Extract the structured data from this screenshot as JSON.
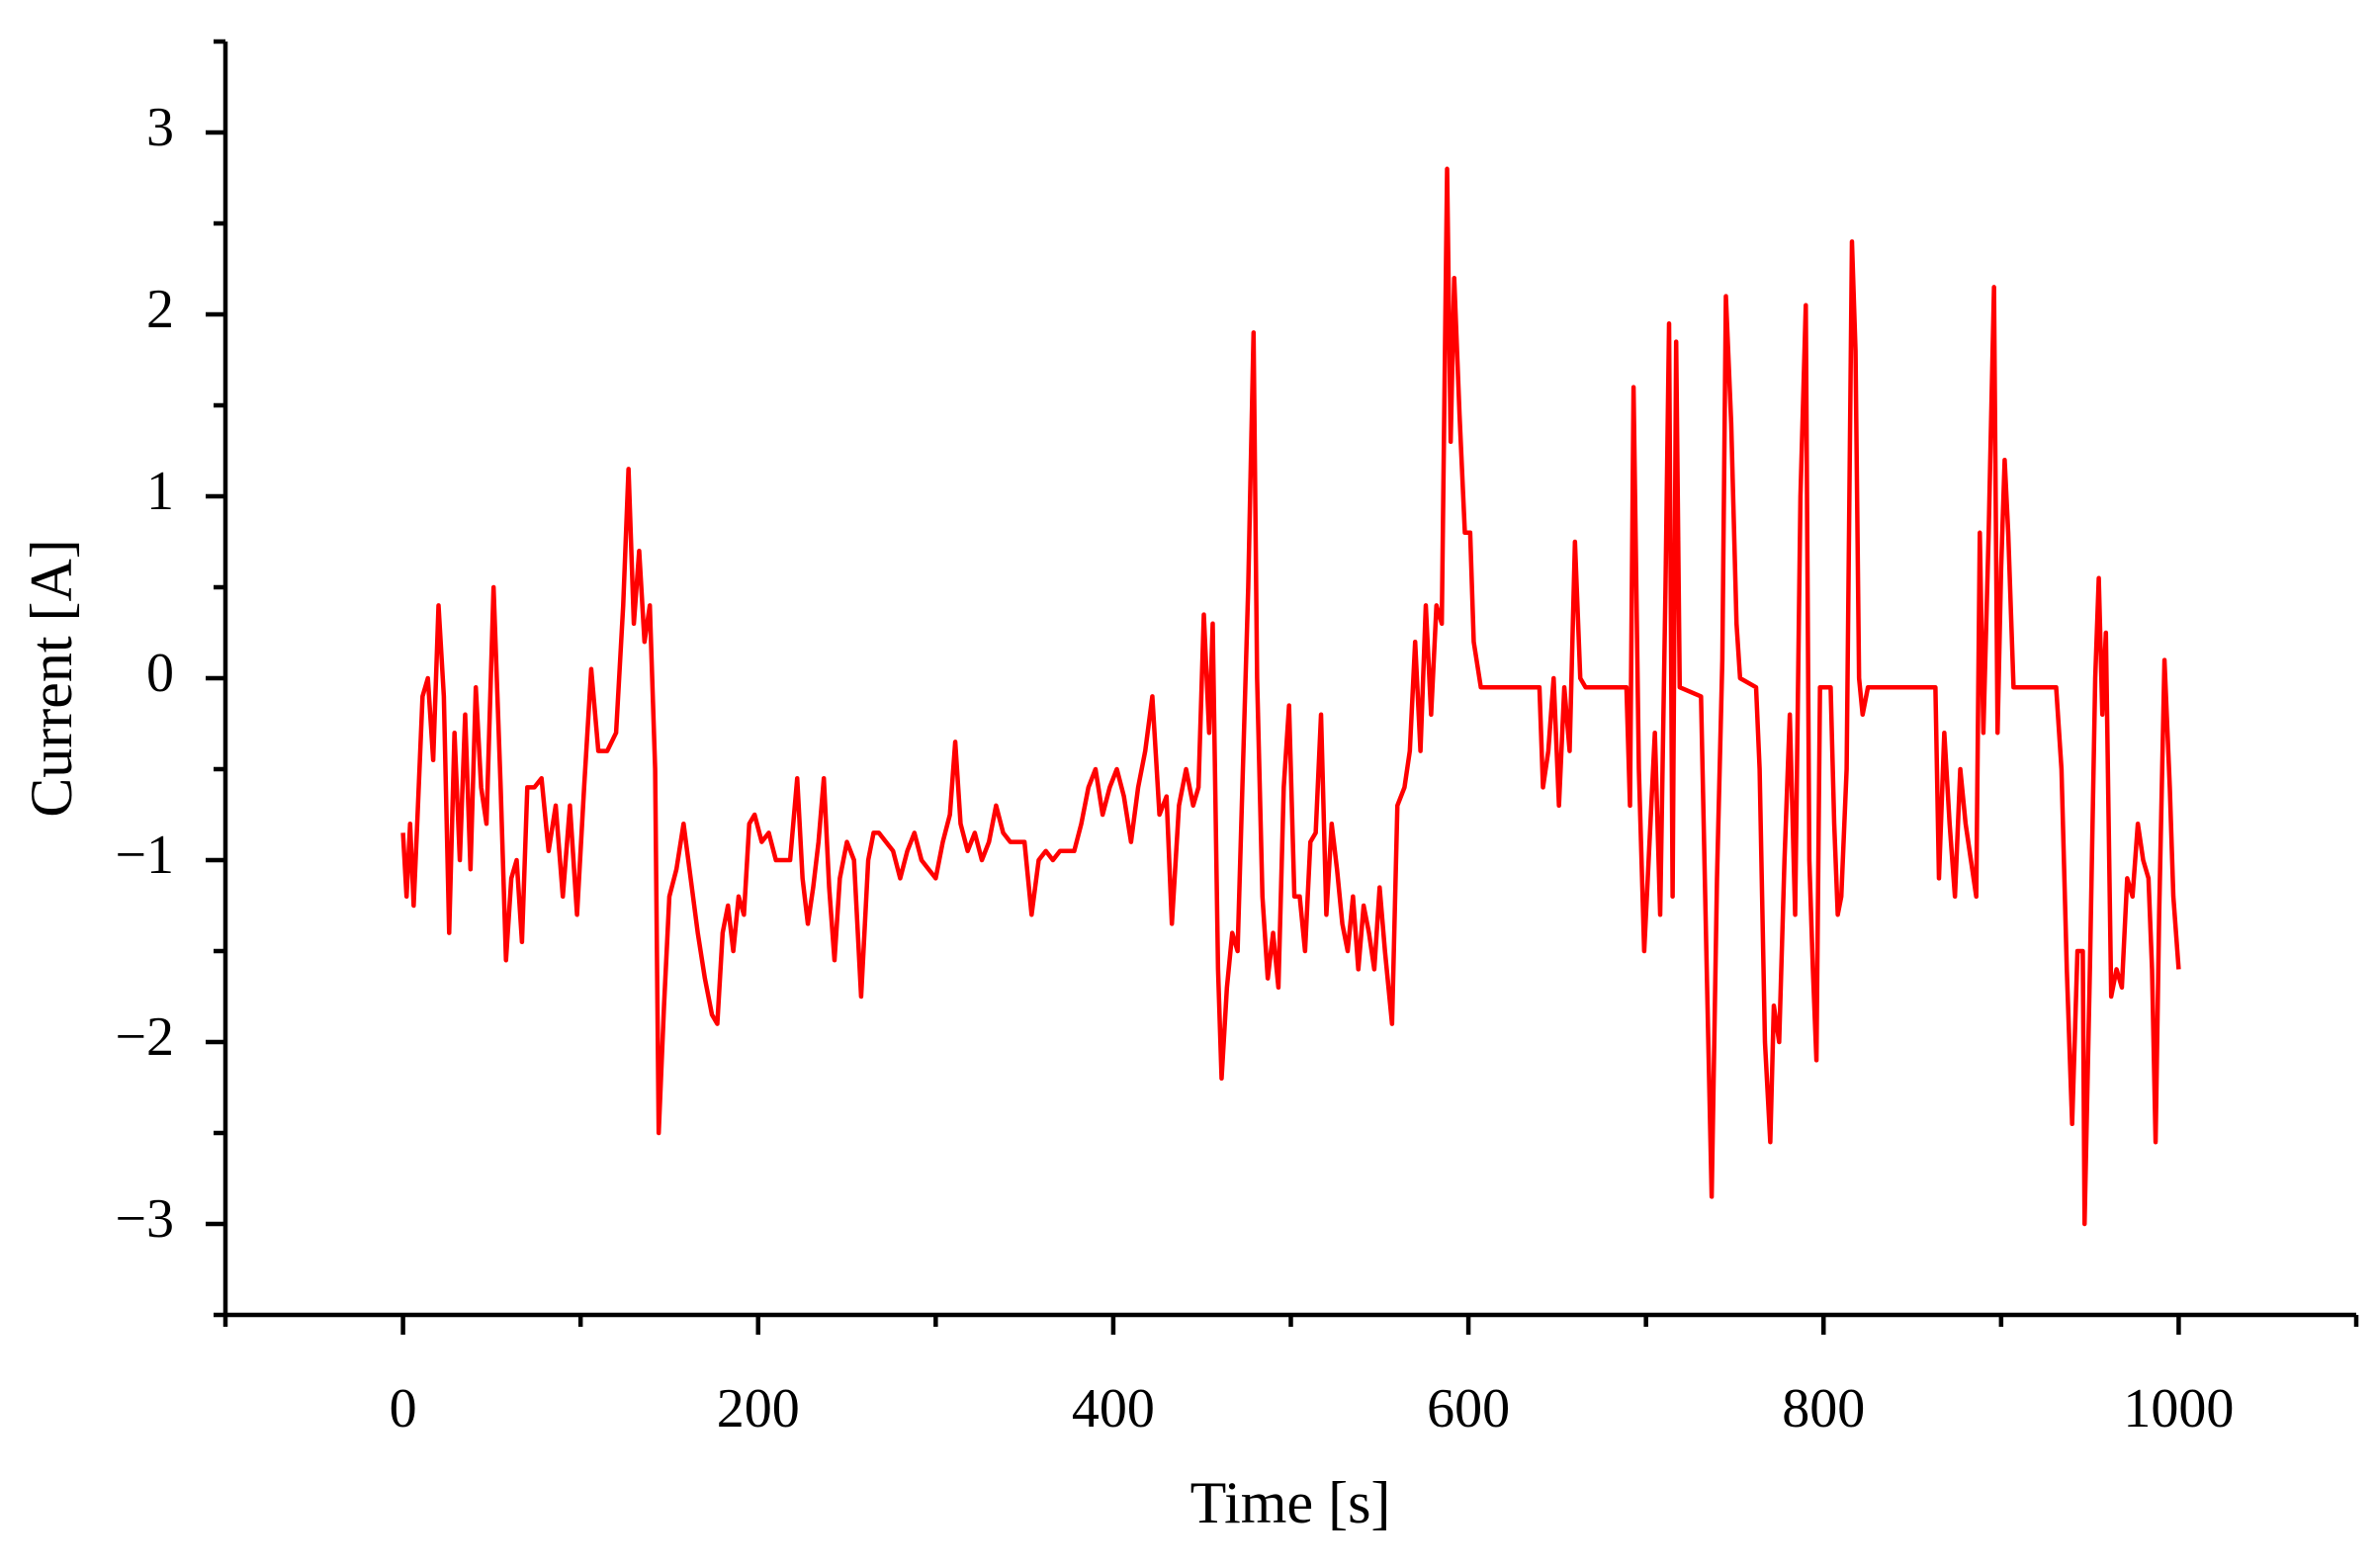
{
  "chart_data": {
    "type": "line",
    "x_label": "Time [s]",
    "y_label": "Current [A]",
    "xlim": [
      -100,
      1100
    ],
    "ylim": [
      -3.5,
      3.5
    ],
    "xticks": [
      0,
      200,
      400,
      600,
      800,
      1000
    ],
    "xminorticks": [
      -100,
      100,
      300,
      500,
      700,
      900,
      1100
    ],
    "yticks": [
      {
        "value": -3,
        "label": "−3"
      },
      {
        "value": -2,
        "label": "−2"
      },
      {
        "value": -1,
        "label": "−1"
      },
      0,
      1,
      2,
      3
    ],
    "yminorticks": [
      -3.5,
      -2.5,
      -1.5,
      -0.5,
      0.5,
      1.5,
      2.5,
      3.5
    ],
    "grid": false,
    "color": "#ff0000",
    "x": [
      0,
      2,
      4,
      6,
      8,
      11,
      14,
      17,
      20,
      23,
      26,
      29,
      32,
      35,
      38,
      41,
      44,
      47,
      51,
      55,
      58,
      61,
      64,
      67,
      70,
      74,
      78,
      82,
      86,
      90,
      94,
      98,
      102,
      106,
      110,
      115,
      120,
      124,
      127,
      130,
      133,
      136,
      139,
      142,
      144,
      147,
      150,
      154,
      158,
      162,
      166,
      170,
      174,
      177,
      180,
      183,
      186,
      189,
      192,
      195,
      198,
      202,
      206,
      210,
      214,
      218,
      222,
      225,
      228,
      231,
      234,
      237,
      240,
      243,
      246,
      250,
      254,
      258,
      262,
      265,
      268,
      272,
      276,
      280,
      284,
      288,
      292,
      296,
      300,
      304,
      308,
      311,
      314,
      318,
      322,
      326,
      330,
      334,
      338,
      342,
      346,
      350,
      354,
      358,
      362,
      366,
      370,
      374,
      378,
      382,
      386,
      390,
      394,
      398,
      402,
      406,
      410,
      414,
      418,
      422,
      426,
      430,
      433,
      437,
      441,
      445,
      448,
      451,
      454,
      456,
      459,
      461,
      464,
      467,
      470,
      473,
      476,
      479,
      481,
      484,
      487,
      490,
      493,
      496,
      499,
      502,
      505,
      508,
      511,
      514,
      517,
      520,
      523,
      526,
      529,
      532,
      535,
      538,
      541,
      544,
      547,
      550,
      553,
      557,
      560,
      564,
      567,
      570,
      573,
      576,
      579,
      582,
      585,
      588,
      590,
      592,
      595,
      598,
      601,
      603,
      607,
      640,
      642,
      645,
      648,
      651,
      654,
      657,
      660,
      663,
      666,
      689,
      691,
      693,
      696,
      699,
      702,
      705,
      708,
      711,
      713,
      715,
      717,
      719,
      731,
      734,
      737,
      740,
      743,
      745,
      748,
      751,
      753,
      762,
      764,
      767,
      770,
      772,
      775,
      778,
      781,
      784,
      787,
      790,
      792,
      794,
      796,
      798,
      804,
      806,
      808,
      810,
      813,
      816,
      818,
      820,
      822,
      825,
      863,
      865,
      868,
      871,
      874,
      877,
      880,
      883,
      886,
      888,
      890,
      893,
      896,
      898,
      900,
      902,
      904,
      907,
      931,
      934,
      937,
      940,
      943,
      946,
      947,
      950,
      953,
      955,
      957,
      959,
      962,
      965,
      968,
      971,
      974,
      977,
      980,
      983,
      985,
      987,
      989,
      992,
      995,
      997,
      1000
    ],
    "values": [
      -0.85,
      -1.2,
      -0.8,
      -1.25,
      -0.8,
      -0.1,
      0.0,
      -0.45,
      0.4,
      -0.1,
      -1.4,
      -0.3,
      -1.0,
      -0.2,
      -1.05,
      -0.05,
      -0.6,
      -0.8,
      0.5,
      -0.6,
      -1.55,
      -1.1,
      -1.0,
      -1.45,
      -0.6,
      -0.6,
      -0.55,
      -0.95,
      -0.7,
      -1.2,
      -0.7,
      -1.3,
      -0.6,
      0.05,
      -0.4,
      -0.4,
      -0.3,
      0.4,
      1.15,
      0.3,
      0.7,
      0.2,
      0.4,
      -0.5,
      -2.5,
      -1.8,
      -1.2,
      -1.05,
      -0.8,
      -1.1,
      -1.4,
      -1.65,
      -1.85,
      -1.9,
      -1.4,
      -1.25,
      -1.5,
      -1.2,
      -1.3,
      -0.8,
      -0.75,
      -0.9,
      -0.85,
      -1.0,
      -1.0,
      -1.0,
      -0.55,
      -1.1,
      -1.35,
      -1.15,
      -0.9,
      -0.55,
      -1.15,
      -1.55,
      -1.1,
      -0.9,
      -1.0,
      -1.75,
      -1.0,
      -0.85,
      -0.85,
      -0.9,
      -0.95,
      -1.1,
      -0.95,
      -0.85,
      -1.0,
      -1.05,
      -1.1,
      -0.9,
      -0.75,
      -0.35,
      -0.8,
      -0.95,
      -0.85,
      -1.0,
      -0.9,
      -0.7,
      -0.85,
      -0.9,
      -0.9,
      -0.9,
      -1.3,
      -1.0,
      -0.95,
      -1.0,
      -0.95,
      -0.95,
      -0.95,
      -0.8,
      -0.6,
      -0.5,
      -0.75,
      -0.6,
      -0.5,
      -0.65,
      -0.9,
      -0.6,
      -0.4,
      -0.1,
      -0.75,
      -0.65,
      -1.35,
      -0.7,
      -0.5,
      -0.7,
      -0.6,
      0.35,
      -0.3,
      0.3,
      -1.6,
      -2.2,
      -1.7,
      -1.4,
      -1.5,
      -0.5,
      0.5,
      1.9,
      0.0,
      -1.2,
      -1.65,
      -1.4,
      -1.7,
      -0.6,
      -0.15,
      -1.2,
      -1.2,
      -1.5,
      -0.9,
      -0.85,
      -0.2,
      -1.3,
      -0.8,
      -1.05,
      -1.35,
      -1.5,
      -1.2,
      -1.6,
      -1.25,
      -1.4,
      -1.6,
      -1.15,
      -1.5,
      -1.9,
      -0.7,
      -0.6,
      -0.4,
      0.2,
      -0.4,
      0.4,
      -0.2,
      0.4,
      0.3,
      2.8,
      1.3,
      2.2,
      1.45,
      0.8,
      0.8,
      0.2,
      -0.05,
      -0.05,
      -0.6,
      -0.4,
      0.0,
      -0.7,
      -0.05,
      -0.4,
      0.75,
      0.0,
      -0.05,
      -0.05,
      -0.7,
      1.6,
      -0.5,
      -1.5,
      -0.9,
      -0.3,
      -1.3,
      0.5,
      1.95,
      -1.2,
      1.85,
      -0.05,
      -0.1,
      -1.5,
      -2.85,
      -1.1,
      0.1,
      2.1,
      1.4,
      0.3,
      0.0,
      -0.05,
      -0.5,
      -2.0,
      -2.55,
      -1.8,
      -2.0,
      -1.0,
      -0.2,
      -1.3,
      1.0,
      2.05,
      -1.0,
      -1.6,
      -2.1,
      -0.05,
      -0.05,
      -0.8,
      -1.3,
      -1.2,
      -0.5,
      2.4,
      1.8,
      0.0,
      -0.2,
      -0.05,
      -0.05,
      -1.1,
      -0.3,
      -0.8,
      -1.2,
      -0.5,
      -0.8,
      -1.0,
      -1.2,
      0.8,
      -0.3,
      0.8,
      2.15,
      -0.3,
      0.6,
      1.2,
      0.8,
      -0.05,
      -0.05,
      -0.5,
      -1.6,
      -2.45,
      -1.5,
      -1.5,
      -3.0,
      -1.6,
      0.0,
      0.55,
      -0.2,
      0.25,
      -1.75,
      -1.6,
      -1.7,
      -1.1,
      -1.2,
      -0.8,
      -1.0,
      -1.1,
      -1.6,
      -2.55,
      -1.3,
      0.1,
      -0.6,
      -1.2,
      -1.6
    ]
  }
}
